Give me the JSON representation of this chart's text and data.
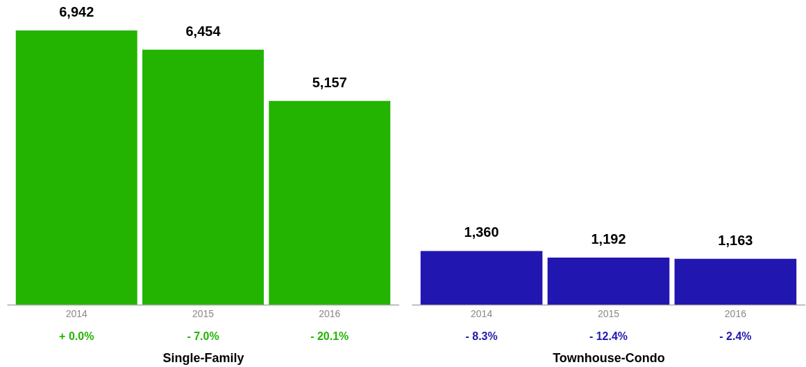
{
  "chart_data": [
    {
      "type": "bar",
      "xlabel": "Single-Family",
      "categories": [
        "2014",
        "2015",
        "2016"
      ],
      "values": [
        6942,
        6454,
        5157
      ],
      "color": "#22b400",
      "value_labels": [
        "6,942",
        "6,454",
        "5,157"
      ],
      "annotations": [
        "+ 0.0%",
        "- 7.0%",
        "- 20.1%"
      ]
    },
    {
      "type": "bar",
      "xlabel": "Townhouse-Condo",
      "categories": [
        "2014",
        "2015",
        "2016"
      ],
      "values": [
        1360,
        1192,
        1163
      ],
      "color": "#2117b0",
      "value_labels": [
        "1,360",
        "1,192",
        "1,163"
      ],
      "annotations": [
        "- 8.3%",
        "- 12.4%",
        "- 2.4%"
      ]
    }
  ]
}
